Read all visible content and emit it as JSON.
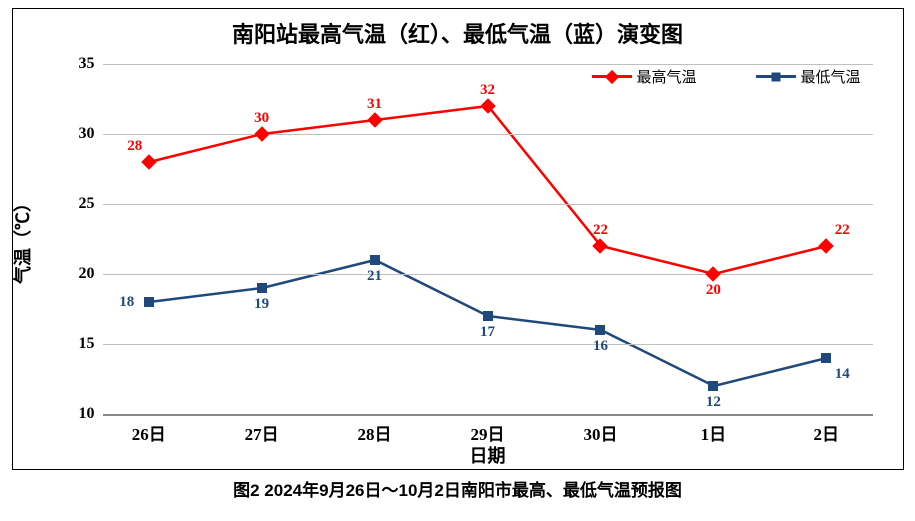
{
  "chart": {
    "type": "line",
    "title": "南阳站最高气温（红）、最低气温（蓝）演变图",
    "title_fontsize": 22,
    "x_axis_title": "日期",
    "y_axis_title": "气温（℃）",
    "axis_title_fontsize": 18,
    "tick_fontsize": 16,
    "background_color": "#ffffff",
    "border_color": "#000000",
    "grid_color": "#bfbfbf",
    "axis_color": "#888888",
    "ylim": [
      10,
      35
    ],
    "ytick_step": 5,
    "yticks": [
      10,
      15,
      20,
      25,
      30,
      35
    ],
    "categories": [
      "26日",
      "27日",
      "28日",
      "29日",
      "30日",
      "1日",
      "2日"
    ],
    "x_positions_pct": [
      6,
      20.67,
      35.33,
      50,
      64.67,
      79.33,
      94
    ],
    "series": [
      {
        "name": "最高气温",
        "values": [
          28,
          30,
          31,
          32,
          22,
          20,
          22
        ],
        "label_positions": [
          "above-left",
          "above",
          "above",
          "above",
          "above",
          "below",
          "above-right"
        ],
        "color": "#ff0000",
        "marker": "diamond",
        "line_width": 2.5,
        "marker_size": 11,
        "data_label_color": "#ff0000"
      },
      {
        "name": "最低气温",
        "values": [
          18,
          19,
          21,
          17,
          16,
          12,
          14
        ],
        "label_positions": [
          "left",
          "below",
          "below",
          "below",
          "below",
          "below",
          "below-right"
        ],
        "color": "#1f497d",
        "marker": "square",
        "line_width": 2.5,
        "marker_size": 10,
        "data_label_color": "#1f497d"
      }
    ],
    "legend": {
      "position": "top-right",
      "items": [
        "最高气温",
        "最低气温"
      ],
      "fontsize": 15
    },
    "data_label_fontsize": 15
  },
  "caption": "图2 2024年9月26日～10月2日南阳市最高、最低气温预报图"
}
